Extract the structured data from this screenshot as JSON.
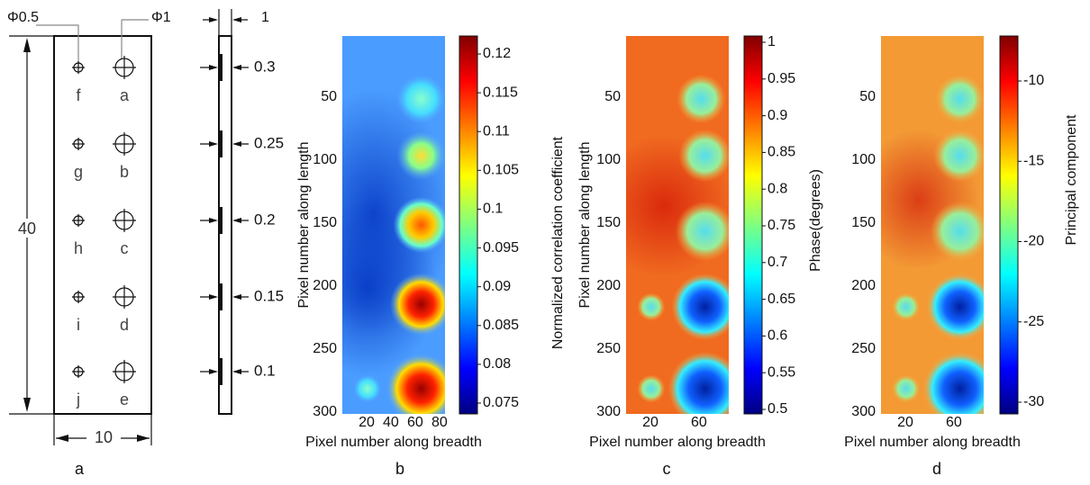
{
  "panel_a": {
    "label": "a",
    "dims": {
      "hole_small": "Φ0.5",
      "hole_large": "Φ1",
      "length": "40",
      "width": "10",
      "thickness": "1"
    },
    "holes_large": [
      "a",
      "b",
      "c",
      "d",
      "e"
    ],
    "holes_small": [
      "f",
      "g",
      "h",
      "i",
      "j"
    ],
    "depths": [
      0.3,
      0.25,
      0.2,
      0.15,
      0.1
    ]
  },
  "panel_b": {
    "label": "b",
    "y_title": "Pixel number along length",
    "x_title": "Pixel number along breadth",
    "yticks": [
      50,
      100,
      150,
      200,
      250,
      300
    ],
    "xticks": [
      20,
      40,
      60,
      80
    ],
    "colorbar_ticks": [
      0.12,
      0.115,
      0.11,
      0.105,
      0.1,
      0.095,
      0.09,
      0.085,
      0.08,
      0.075
    ]
  },
  "panel_c": {
    "label": "c",
    "y_title": "Pixel number along length",
    "x_title": "Pixel number along breadth",
    "outer_title": "Normalized correlation coefficient",
    "colorbar_title": "Phase(degrees)",
    "yticks": [
      50,
      100,
      150,
      200,
      250,
      300
    ],
    "xticks": [
      20,
      60
    ],
    "colorbar_ticks": [
      1,
      0.95,
      0.9,
      0.85,
      0.8,
      0.75,
      0.7,
      0.65,
      0.6,
      0.55,
      0.5
    ]
  },
  "panel_d": {
    "label": "d",
    "x_title": "Pixel number along breadth",
    "colorbar_title": "Principal component",
    "yticks": [
      50,
      100,
      150,
      200,
      250,
      300
    ],
    "xticks": [
      20,
      60
    ],
    "colorbar_ticks": [
      -10,
      -15,
      -20,
      -25,
      -30
    ]
  }
}
